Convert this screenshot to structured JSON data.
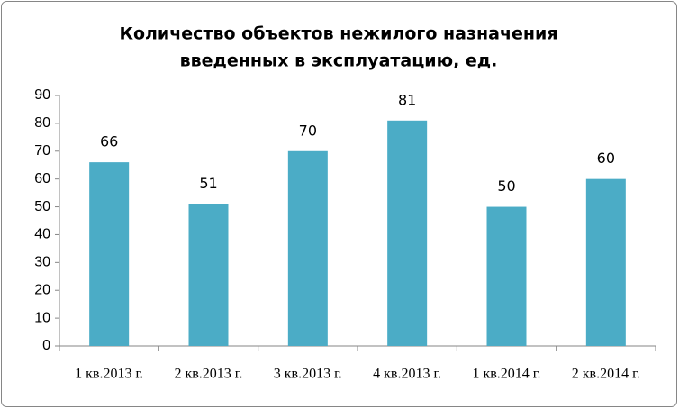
{
  "chart_data": {
    "type": "bar",
    "title": [
      "Количество объектов  нежилого назначения",
      "введенных в эксплуатацию, ед."
    ],
    "categories": [
      "1 кв.2013 г.",
      "2 кв.2013 г.",
      "3 кв.2013 г.",
      "4 кв.2013 г.",
      "1 кв.2014 г.",
      "2 кв.2014 г."
    ],
    "values": [
      66,
      51,
      70,
      81,
      50,
      60
    ],
    "color": "#4bacc6",
    "ylim": [
      0,
      90
    ],
    "yticks": [
      0,
      10,
      20,
      30,
      40,
      50,
      60,
      70,
      80,
      90
    ],
    "grid": false
  }
}
